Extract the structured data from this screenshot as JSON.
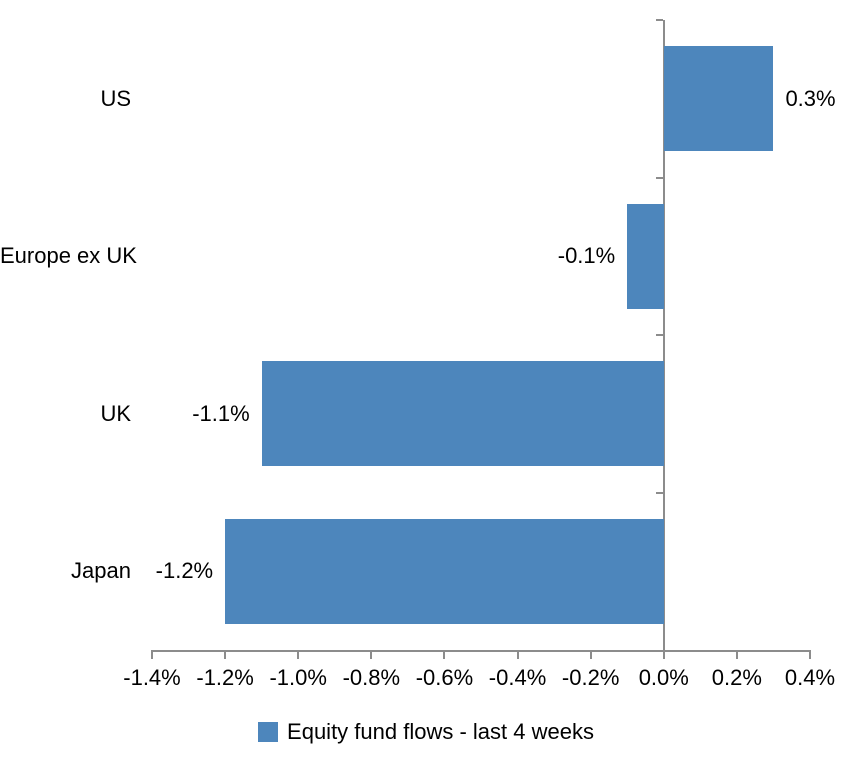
{
  "chart_data": {
    "type": "bar",
    "orientation": "horizontal",
    "title": "",
    "categories": [
      "US",
      "Europe ex UK",
      "UK",
      "Japan"
    ],
    "values": [
      0.3,
      -0.1,
      -1.1,
      -1.2
    ],
    "data_labels": [
      "0.3%",
      "-0.1%",
      "-1.1%",
      "-1.2%"
    ],
    "x_ticks": [
      "-1.4%",
      "-1.2%",
      "-1.0%",
      "-0.8%",
      "-0.6%",
      "-0.4%",
      "-0.2%",
      "0.0%",
      "0.2%",
      "0.4%"
    ],
    "x_tick_values": [
      -1.4,
      -1.2,
      -1.0,
      -0.8,
      -0.6,
      -0.4,
      -0.2,
      0.0,
      0.2,
      0.4
    ],
    "xlim": [
      -1.4,
      0.4
    ],
    "grid": false,
    "legend_position": "bottom",
    "legend": [
      {
        "label": "Equity fund flows - last 4 weeks",
        "color": "#4D86BC"
      }
    ],
    "colors": {
      "bar": "#4D86BC",
      "axis": "#8C8C8C",
      "text": "#000000",
      "background": "#FFFFFF"
    }
  }
}
